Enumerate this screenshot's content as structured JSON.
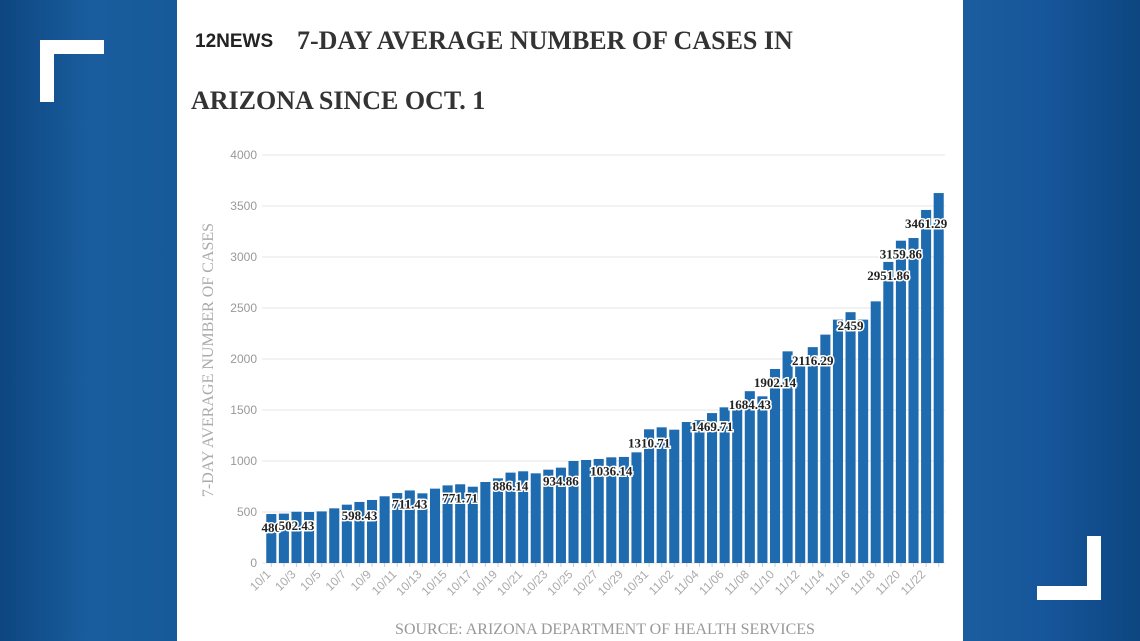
{
  "logo_text": "12NEWS",
  "title_line1": "7-DAY AVERAGE NUMBER OF CASES IN",
  "title_line2": "ARIZONA SINCE OCT. 1",
  "source": "SOURCE: ARIZONA DEPARTMENT OF HEALTH SERVICES",
  "colors": {
    "bar": "#1f6bb0",
    "background": "#175a99",
    "panel": "#ffffff"
  },
  "chart_data": {
    "type": "bar",
    "title": "7-DAY AVERAGE NUMBER OF CASES IN ARIZONA SINCE OCT. 1",
    "xlabel": "",
    "ylabel": "7-DAY AVERAGE NUMBER OF CASES",
    "ylim": [
      0,
      4000
    ],
    "yticks": [
      "0",
      "500",
      "1000",
      "1500",
      "2000",
      "2500",
      "3000",
      "3500",
      "4000"
    ],
    "grid": true,
    "categories": [
      "10/1",
      "10/2",
      "10/3",
      "10/4",
      "10/5",
      "10/6",
      "10/7",
      "10/8",
      "10/9",
      "10/10",
      "10/11",
      "10/12",
      "10/13",
      "10/14",
      "10/15",
      "10/16",
      "10/17",
      "10/18",
      "10/19",
      "10/20",
      "10/21",
      "10/22",
      "10/23",
      "10/24",
      "10/25",
      "10/26",
      "10/27",
      "10/28",
      "10/29",
      "10/30",
      "10/31",
      "11/01",
      "11/02",
      "11/03",
      "11/04",
      "11/05",
      "11/06",
      "11/07",
      "11/08",
      "11/09",
      "11/10",
      "11/11",
      "11/12",
      "11/13",
      "11/14",
      "11/15",
      "11/16",
      "11/17",
      "11/18",
      "11/19",
      "11/20",
      "11/21",
      "11/22",
      "11/23"
    ],
    "values": [
      480,
      484,
      502.43,
      500,
      506,
      536,
      572,
      598.43,
      618,
      654,
      686,
      711.43,
      683,
      729,
      761,
      771.71,
      748,
      794,
      830,
      886.14,
      899,
      879,
      915,
      934.86,
      1000,
      1010,
      1020,
      1036.14,
      1040,
      1085,
      1310.71,
      1330,
      1307,
      1382,
      1400,
      1469.71,
      1526,
      1560,
      1684.43,
      1634,
      1902.14,
      2075,
      1940,
      2116.29,
      2239,
      2386,
      2459,
      2386,
      2565,
      2951.86,
      3159.86,
      3186,
      3461.29,
      3627
    ],
    "xtick_labels": [
      "10/1",
      "10/3",
      "10/5",
      "10/7",
      "10/9",
      "10/11",
      "10/13",
      "10/15",
      "10/17",
      "10/19",
      "10/21",
      "10/23",
      "10/25",
      "10/27",
      "10/29",
      "10/31",
      "11/02",
      "11/04",
      "11/06",
      "11/08",
      "11/10",
      "11/12",
      "11/14",
      "11/16",
      "11/18",
      "11/20",
      "11/22"
    ],
    "data_labels": [
      {
        "category": "10/1",
        "text": "480"
      },
      {
        "category": "10/3",
        "text": "502.43"
      },
      {
        "category": "10/8",
        "text": "598.43"
      },
      {
        "category": "10/12",
        "text": "711.43"
      },
      {
        "category": "10/16",
        "text": "771.71"
      },
      {
        "category": "10/20",
        "text": "886.14"
      },
      {
        "category": "10/24",
        "text": "934.86"
      },
      {
        "category": "10/28",
        "text": "1036.14"
      },
      {
        "category": "10/31",
        "text": "1310.71"
      },
      {
        "category": "11/05",
        "text": "1469.71"
      },
      {
        "category": "11/08",
        "text": "1684.43"
      },
      {
        "category": "11/10",
        "text": "1902.14"
      },
      {
        "category": "11/13",
        "text": "2116.29"
      },
      {
        "category": "11/16",
        "text": "2459"
      },
      {
        "category": "11/19",
        "text": "2951.86"
      },
      {
        "category": "11/20",
        "text": "3159.86"
      },
      {
        "category": "11/22",
        "text": "3461.29"
      }
    ]
  }
}
